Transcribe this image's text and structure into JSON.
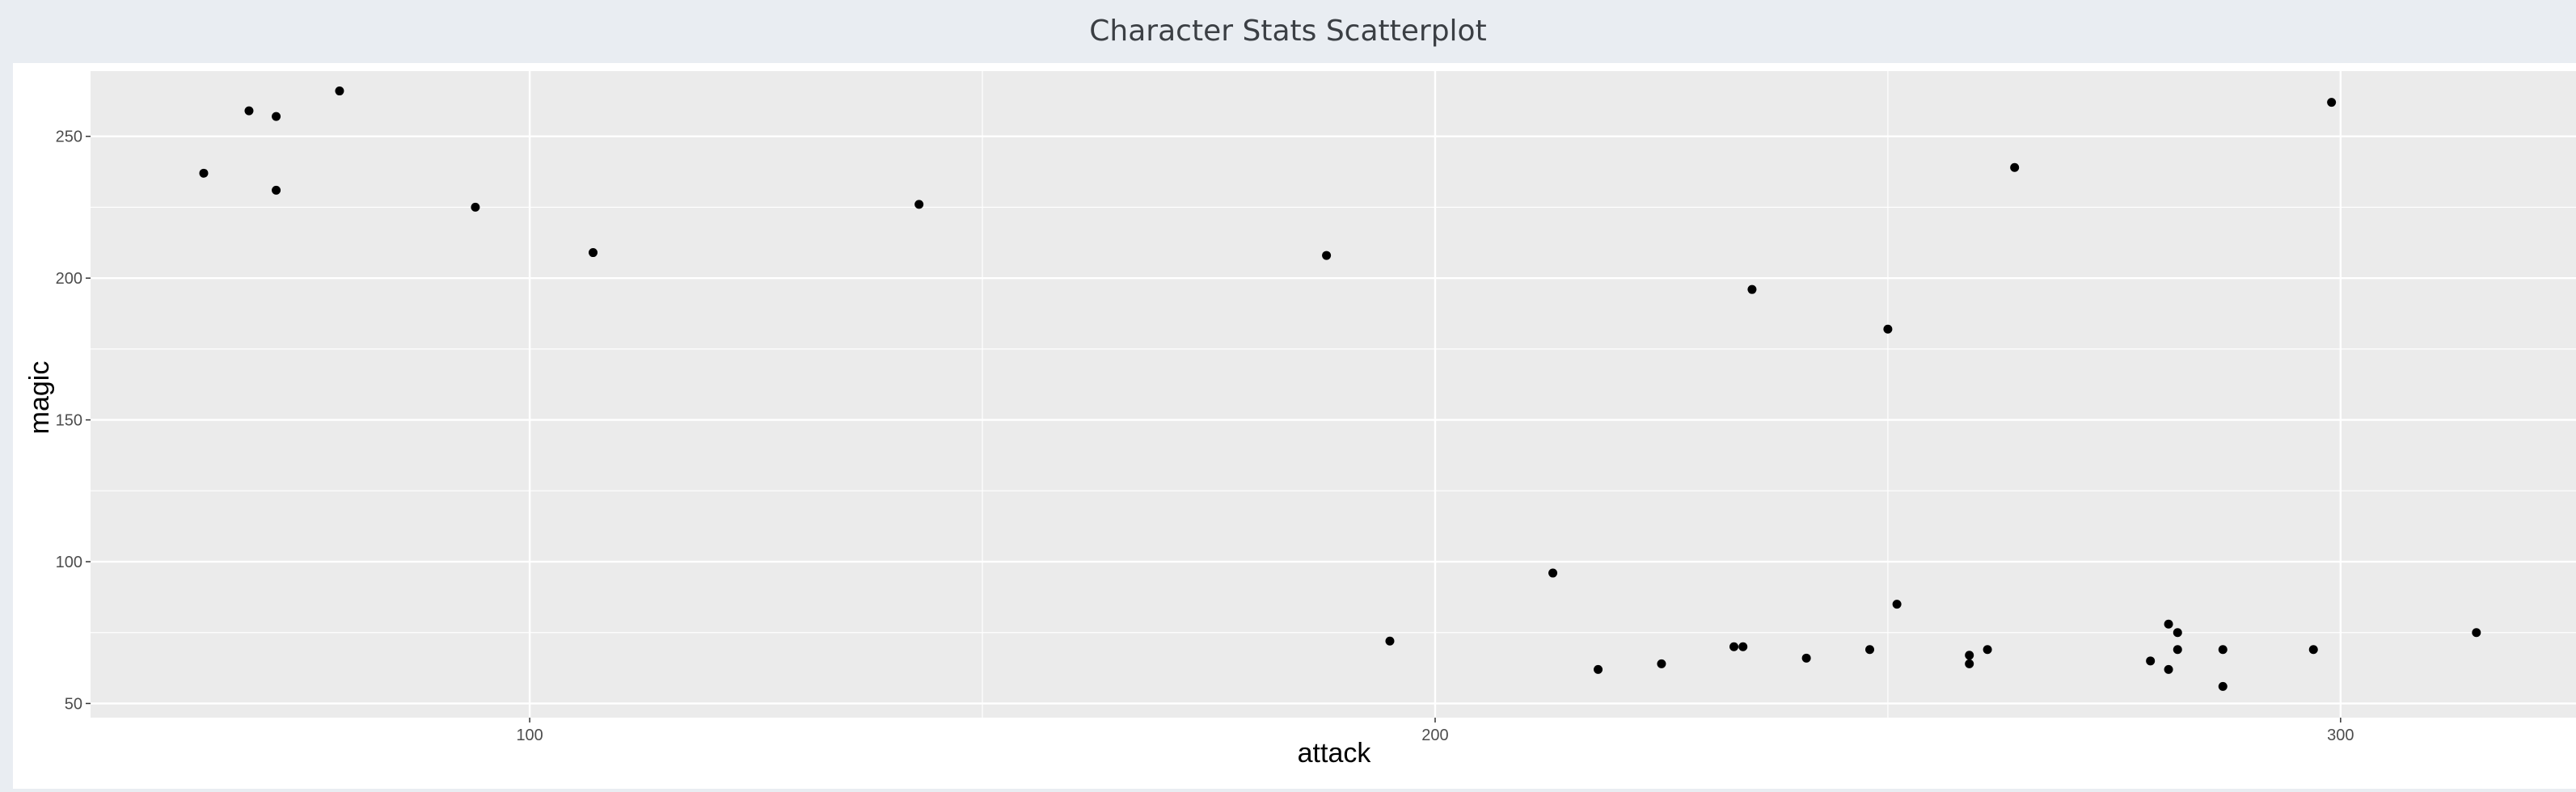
{
  "page": {
    "title": "Character Stats Scatterplot"
  },
  "chart_data": {
    "type": "scatter",
    "xlabel": "attack",
    "ylabel": "magic",
    "xlim": [
      51.5,
      326
    ],
    "ylim": [
      45,
      273
    ],
    "x_ticks": [
      100,
      200,
      300
    ],
    "y_ticks": [
      50,
      100,
      150,
      200,
      250
    ],
    "grid": true,
    "background": "#ebebeb",
    "grid_color": "#ffffff",
    "point_color": "#000000",
    "points": [
      {
        "x": 64,
        "y": 237
      },
      {
        "x": 69,
        "y": 259
      },
      {
        "x": 72,
        "y": 257
      },
      {
        "x": 72,
        "y": 231
      },
      {
        "x": 79,
        "y": 266
      },
      {
        "x": 94,
        "y": 225
      },
      {
        "x": 107,
        "y": 209
      },
      {
        "x": 143,
        "y": 226
      },
      {
        "x": 188,
        "y": 208
      },
      {
        "x": 195,
        "y": 72
      },
      {
        "x": 213,
        "y": 96
      },
      {
        "x": 218,
        "y": 62
      },
      {
        "x": 225,
        "y": 64
      },
      {
        "x": 233,
        "y": 70
      },
      {
        "x": 234,
        "y": 70
      },
      {
        "x": 235,
        "y": 196
      },
      {
        "x": 241,
        "y": 66
      },
      {
        "x": 248,
        "y": 69
      },
      {
        "x": 250,
        "y": 182
      },
      {
        "x": 251,
        "y": 85
      },
      {
        "x": 259,
        "y": 67
      },
      {
        "x": 259,
        "y": 64
      },
      {
        "x": 261,
        "y": 69
      },
      {
        "x": 264,
        "y": 239
      },
      {
        "x": 279,
        "y": 65
      },
      {
        "x": 281,
        "y": 78
      },
      {
        "x": 281,
        "y": 62
      },
      {
        "x": 282,
        "y": 75
      },
      {
        "x": 282,
        "y": 69
      },
      {
        "x": 287,
        "y": 69
      },
      {
        "x": 287,
        "y": 56
      },
      {
        "x": 297,
        "y": 69
      },
      {
        "x": 299,
        "y": 262
      },
      {
        "x": 315,
        "y": 75
      }
    ]
  }
}
